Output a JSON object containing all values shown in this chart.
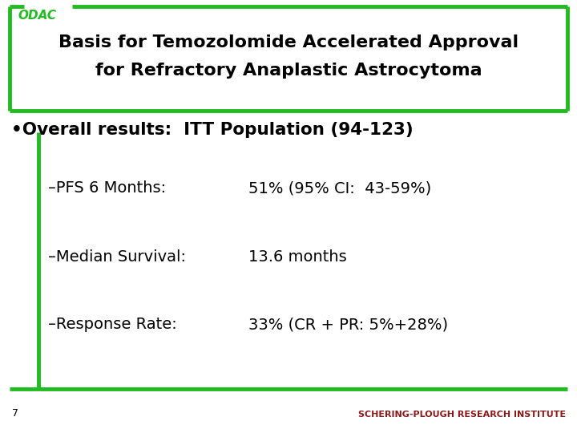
{
  "background_color": "#ffffff",
  "border_color": "#22bb22",
  "odac_label": "ODAC",
  "odac_color": "#22bb22",
  "title_line1": "Basis for Temozolomide Accelerated Approval",
  "title_line2": "for Refractory Anaplastic Astrocytoma",
  "title_color": "#000000",
  "bullet_text": "•Overall results:  ITT Population (94-123)",
  "bullet_color": "#000000",
  "item_labels": [
    "–PFS 6 Months:",
    "–Median Survival:",
    "–Response Rate:"
  ],
  "item_values": [
    "51% (95% CI:  43-59%)",
    "13.6 months",
    "33% (CR + PR: 5%+28%)"
  ],
  "footer_text": "SCHERING-PLOUGH RESEARCH INSTITUTE",
  "footer_color": "#8B1A1A",
  "page_number": "7",
  "green_color": "#22bb22"
}
